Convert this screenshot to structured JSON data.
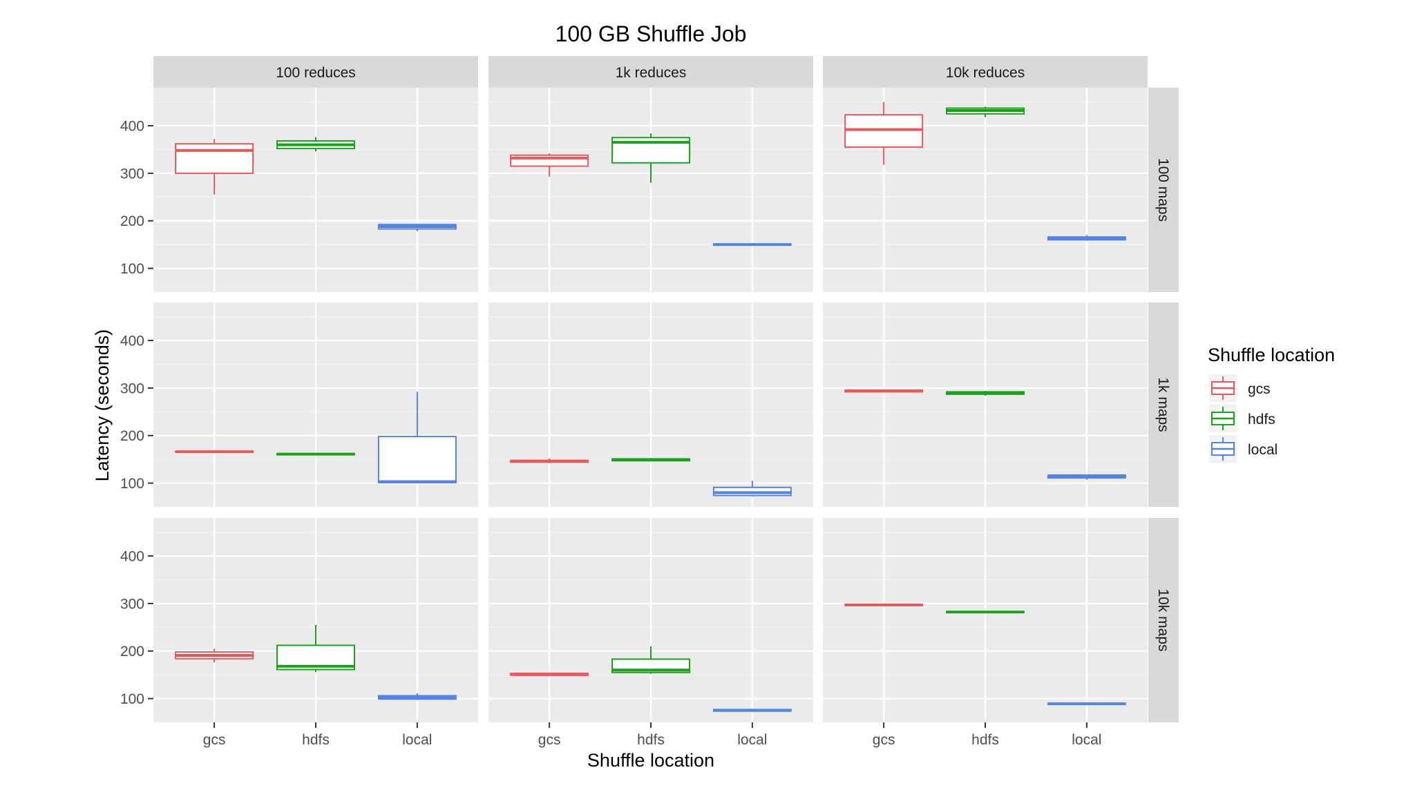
{
  "chart_data": {
    "type": "boxplot",
    "title": "100 GB Shuffle Job",
    "xlabel": "Shuffle location",
    "ylabel": "Latency (seconds)",
    "ylim": [
      50,
      480
    ],
    "yticks": [
      100,
      200,
      300,
      400
    ],
    "grid": true,
    "categories": [
      "gcs",
      "hdfs",
      "local"
    ],
    "colors": {
      "gcs": "#e8595a",
      "hdfs": "#1aa31a",
      "local": "#5283e6"
    },
    "col_facets": [
      "100 reduces",
      "1k reduces",
      "10k reduces"
    ],
    "row_facets": [
      "100 maps",
      "1k maps",
      "10k maps"
    ],
    "legend": {
      "title": "Shuffle location",
      "position": "right",
      "items": [
        "gcs",
        "hdfs",
        "local"
      ]
    },
    "boxes": [
      {
        "row": 0,
        "col": 0,
        "category": "gcs",
        "min": 255,
        "q1": 300,
        "median": 348,
        "q3": 362,
        "max": 372
      },
      {
        "row": 0,
        "col": 0,
        "category": "hdfs",
        "min": 346,
        "q1": 352,
        "median": 360,
        "q3": 368,
        "max": 376
      },
      {
        "row": 0,
        "col": 0,
        "category": "local",
        "min": 178,
        "q1": 183,
        "median": 188,
        "q3": 192,
        "max": 194
      },
      {
        "row": 0,
        "col": 1,
        "category": "gcs",
        "min": 293,
        "q1": 315,
        "median": 332,
        "q3": 338,
        "max": 342
      },
      {
        "row": 0,
        "col": 1,
        "category": "hdfs",
        "min": 280,
        "q1": 322,
        "median": 365,
        "q3": 375,
        "max": 384
      },
      {
        "row": 0,
        "col": 1,
        "category": "local",
        "min": 148,
        "q1": 149,
        "median": 150,
        "q3": 151,
        "max": 152
      },
      {
        "row": 0,
        "col": 2,
        "category": "gcs",
        "min": 318,
        "q1": 355,
        "median": 392,
        "q3": 423,
        "max": 450
      },
      {
        "row": 0,
        "col": 2,
        "category": "hdfs",
        "min": 418,
        "q1": 425,
        "median": 432,
        "q3": 437,
        "max": 440
      },
      {
        "row": 0,
        "col": 2,
        "category": "local",
        "min": 158,
        "q1": 160,
        "median": 163,
        "q3": 166,
        "max": 170
      },
      {
        "row": 1,
        "col": 0,
        "category": "gcs",
        "min": 164,
        "q1": 165,
        "median": 166,
        "q3": 167,
        "max": 168
      },
      {
        "row": 1,
        "col": 0,
        "category": "hdfs",
        "min": 159,
        "q1": 160,
        "median": 161,
        "q3": 162,
        "max": 163
      },
      {
        "row": 1,
        "col": 0,
        "category": "local",
        "min": 100,
        "q1": 101,
        "median": 103,
        "q3": 198,
        "max": 292
      },
      {
        "row": 1,
        "col": 1,
        "category": "gcs",
        "min": 142,
        "q1": 144,
        "median": 146,
        "q3": 148,
        "max": 152
      },
      {
        "row": 1,
        "col": 1,
        "category": "hdfs",
        "min": 146,
        "q1": 147,
        "median": 149,
        "q3": 151,
        "max": 153
      },
      {
        "row": 1,
        "col": 1,
        "category": "local",
        "min": 72,
        "q1": 74,
        "median": 80,
        "q3": 91,
        "max": 105
      },
      {
        "row": 1,
        "col": 2,
        "category": "gcs",
        "min": 291,
        "q1": 292,
        "median": 294,
        "q3": 295,
        "max": 296
      },
      {
        "row": 1,
        "col": 2,
        "category": "hdfs",
        "min": 284,
        "q1": 287,
        "median": 290,
        "q3": 292,
        "max": 294
      },
      {
        "row": 1,
        "col": 2,
        "category": "local",
        "min": 107,
        "q1": 111,
        "median": 114,
        "q3": 117,
        "max": 118
      },
      {
        "row": 2,
        "col": 0,
        "category": "gcs",
        "min": 176,
        "q1": 184,
        "median": 191,
        "q3": 198,
        "max": 205
      },
      {
        "row": 2,
        "col": 0,
        "category": "hdfs",
        "min": 156,
        "q1": 161,
        "median": 168,
        "q3": 212,
        "max": 255
      },
      {
        "row": 2,
        "col": 0,
        "category": "local",
        "min": 97,
        "q1": 99,
        "median": 102,
        "q3": 106,
        "max": 111
      },
      {
        "row": 2,
        "col": 1,
        "category": "gcs",
        "min": 148,
        "q1": 149,
        "median": 151,
        "q3": 153,
        "max": 154
      },
      {
        "row": 2,
        "col": 1,
        "category": "hdfs",
        "min": 152,
        "q1": 155,
        "median": 160,
        "q3": 183,
        "max": 210
      },
      {
        "row": 2,
        "col": 1,
        "category": "local",
        "min": 73,
        "q1": 74,
        "median": 75,
        "q3": 77,
        "max": 78
      },
      {
        "row": 2,
        "col": 2,
        "category": "gcs",
        "min": 295,
        "q1": 296,
        "median": 297,
        "q3": 298,
        "max": 299
      },
      {
        "row": 2,
        "col": 2,
        "category": "hdfs",
        "min": 280,
        "q1": 281,
        "median": 282,
        "q3": 283,
        "max": 284
      },
      {
        "row": 2,
        "col": 2,
        "category": "local",
        "min": 87,
        "q1": 88,
        "median": 89,
        "q3": 90,
        "max": 91
      }
    ]
  }
}
